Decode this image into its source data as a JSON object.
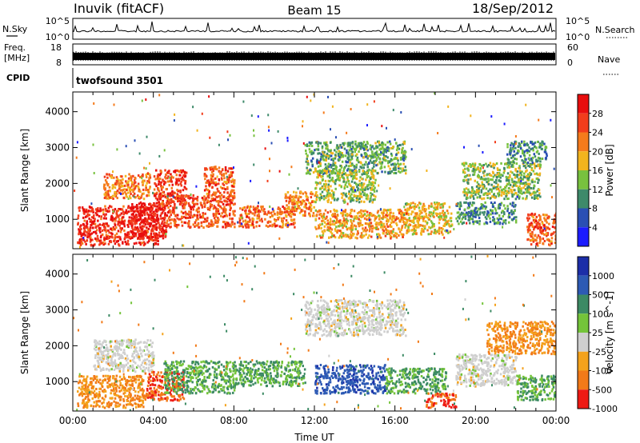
{
  "header": {
    "station": "Inuvik (fitACF)",
    "beam": "Beam 15",
    "date": "18/Sep/2012"
  },
  "aux_panels": {
    "nsky_label": "N.Sky",
    "nsky_ticks": [
      "10^5",
      "10^0"
    ],
    "nsearch_label": "N.Search",
    "nsearch_ticks": [
      "10^5",
      "10^0"
    ],
    "freq_label_line1": "Freq.",
    "freq_label_line2": "[MHz]",
    "freq_ticks": [
      "18",
      "8"
    ],
    "nave_label": "Nave",
    "nave_ticks": [
      "60",
      "0"
    ],
    "cpid_label": "CPID",
    "cpid_value": "twofsound 3501"
  },
  "chart_data": [
    {
      "type": "heatmap",
      "panel": "power",
      "ylabel": "Slant Range [km]",
      "ylim": [
        180,
        4550
      ],
      "yticks": [
        "1000",
        "2000",
        "3000",
        "4000"
      ],
      "ytick_values": [
        1000,
        2000,
        3000,
        4000
      ],
      "xlim": [
        0,
        24
      ],
      "colorbar_label": "Power [dB]",
      "colorbar_ticks": [
        "4",
        "8",
        "12",
        "16",
        "20",
        "24",
        "28"
      ],
      "colorbar_tick_values": [
        4,
        8,
        12,
        16,
        20,
        24,
        28
      ],
      "colorbar_range": [
        0,
        32
      ],
      "colors": [
        "#1c1cff",
        "#2a4fb4",
        "#3e8a6a",
        "#78c13e",
        "#f2b41e",
        "#f57b1c",
        "#f23d1c",
        "#e80e0e"
      ],
      "blobs": [
        {
          "t": [
            0.2,
            4.2
          ],
          "r": [
            300,
            1400
          ],
          "v": 28
        },
        {
          "t": [
            1.5,
            3.8
          ],
          "r": [
            1600,
            2300
          ],
          "v": 22
        },
        {
          "t": [
            2.8,
            4.6
          ],
          "r": [
            500,
            1500
          ],
          "v": 30
        },
        {
          "t": [
            4.0,
            5.6
          ],
          "r": [
            1400,
            2400
          ],
          "v": 27
        },
        {
          "t": [
            4.6,
            8.0
          ],
          "r": [
            800,
            1700
          ],
          "v": 25
        },
        {
          "t": [
            6.5,
            8.0
          ],
          "r": [
            1700,
            2500
          ],
          "v": 24
        },
        {
          "t": [
            8.2,
            11.0
          ],
          "r": [
            800,
            1400
          ],
          "v": 24
        },
        {
          "t": [
            10.5,
            12.0
          ],
          "r": [
            1100,
            1800
          ],
          "v": 22
        },
        {
          "t": [
            11.5,
            16.5
          ],
          "r": [
            2300,
            3200
          ],
          "v": 12
        },
        {
          "t": [
            12.0,
            15.0
          ],
          "r": [
            1500,
            2400
          ],
          "v": 15
        },
        {
          "t": [
            12.0,
            16.5
          ],
          "r": [
            500,
            1300
          ],
          "v": 20
        },
        {
          "t": [
            16.5,
            18.8
          ],
          "r": [
            600,
            1500
          ],
          "v": 18
        },
        {
          "t": [
            19.0,
            22.0
          ],
          "r": [
            900,
            1500
          ],
          "v": 10
        },
        {
          "t": [
            19.3,
            23.2
          ],
          "r": [
            1600,
            2600
          ],
          "v": 14
        },
        {
          "t": [
            21.5,
            23.5
          ],
          "r": [
            2600,
            3200
          ],
          "v": 10
        },
        {
          "t": [
            22.5,
            24.0
          ],
          "r": [
            300,
            1200
          ],
          "v": 24
        }
      ]
    },
    {
      "type": "heatmap",
      "panel": "velocity",
      "ylabel": "Slant Range [km]",
      "ylim": [
        180,
        4550
      ],
      "yticks": [
        "1000",
        "2000",
        "3000",
        "4000"
      ],
      "ytick_values": [
        1000,
        2000,
        3000,
        4000
      ],
      "xlim": [
        0,
        24
      ],
      "xticks": [
        "00:00",
        "04:00",
        "08:00",
        "12:00",
        "16:00",
        "20:00",
        "00:00"
      ],
      "xtick_values": [
        0,
        4,
        8,
        12,
        16,
        20,
        24
      ],
      "xlabel": "Time UT",
      "colorbar_label": "Velocity [m s^-1]",
      "colorbar_ticks": [
        "1000",
        "500",
        "100",
        "25",
        "-25",
        "-100",
        "-500",
        "-1000"
      ],
      "colorbar_tick_values": [
        1000,
        500,
        100,
        25,
        -25,
        -100,
        -500,
        -1000
      ],
      "colors": [
        "#1c2ea8",
        "#2d5ab4",
        "#3c8a64",
        "#74c43a",
        "#cfcfcf",
        "#f4a21c",
        "#f27a18",
        "#ee1a14"
      ],
      "blobs": [
        {
          "t": [
            0.2,
            3.5
          ],
          "r": [
            300,
            1200
          ],
          "v": -100
        },
        {
          "t": [
            1.0,
            4.0
          ],
          "r": [
            1300,
            2200
          ],
          "v": 0
        },
        {
          "t": [
            3.5,
            5.5
          ],
          "r": [
            500,
            1300
          ],
          "v": -500
        },
        {
          "t": [
            4.5,
            8.0
          ],
          "r": [
            700,
            1600
          ],
          "v": 100
        },
        {
          "t": [
            8.0,
            11.5
          ],
          "r": [
            900,
            1600
          ],
          "v": 100
        },
        {
          "t": [
            11.5,
            16.5
          ],
          "r": [
            2300,
            3300
          ],
          "v": 0
        },
        {
          "t": [
            12.0,
            15.5
          ],
          "r": [
            700,
            1500
          ],
          "v": 800
        },
        {
          "t": [
            15.5,
            18.5
          ],
          "r": [
            700,
            1400
          ],
          "v": 100
        },
        {
          "t": [
            17.5,
            19.0
          ],
          "r": [
            300,
            700
          ],
          "v": -500
        },
        {
          "t": [
            19.0,
            22.0
          ],
          "r": [
            900,
            1800
          ],
          "v": 0
        },
        {
          "t": [
            20.5,
            24.0
          ],
          "r": [
            1800,
            2700
          ],
          "v": -100
        },
        {
          "t": [
            22.0,
            24.0
          ],
          "r": [
            500,
            1200
          ],
          "v": 100
        }
      ]
    }
  ]
}
